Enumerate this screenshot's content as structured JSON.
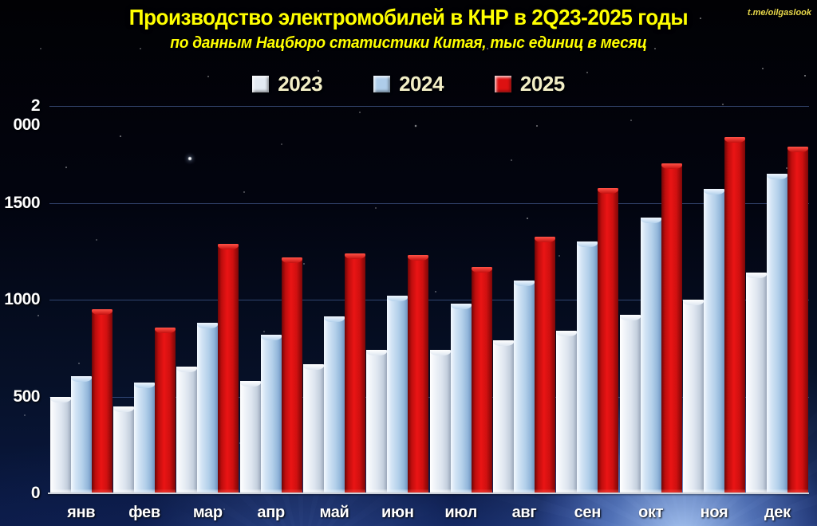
{
  "watermark": "t.me/oilgaslook",
  "chart_data": {
    "type": "bar",
    "title": "Производство электромобилей в КНР в 2Q23-2025 годы",
    "subtitle": "по данным Нацбюро статистики Китая, тыс единиц в месяц",
    "xlabel": "",
    "ylabel": "",
    "categories": [
      "янв",
      "фев",
      "мар",
      "апр",
      "май",
      "июн",
      "июл",
      "авг",
      "сен",
      "окт",
      "ноя",
      "дек"
    ],
    "series": [
      {
        "name": "2023",
        "color": "#e3eaf2",
        "values": [
          500,
          450,
          655,
          580,
          665,
          740,
          740,
          790,
          840,
          920,
          1000,
          1140
        ]
      },
      {
        "name": "2024",
        "color": "#aecdea",
        "values": [
          605,
          570,
          880,
          820,
          915,
          1020,
          980,
          1100,
          1300,
          1425,
          1570,
          1650
        ]
      },
      {
        "name": "2025",
        "color": "#dd1111",
        "values": [
          950,
          855,
          1290,
          1220,
          1240,
          1230,
          1170,
          1325,
          1575,
          1705,
          1840,
          1790
        ]
      }
    ],
    "ylim": [
      0,
      2000
    ],
    "yticks": [
      {
        "label": "2 000",
        "value": 2000
      },
      {
        "label": "1500",
        "value": 1500
      },
      {
        "label": "1000",
        "value": 1000
      },
      {
        "label": "500",
        "value": 500
      },
      {
        "label": "0",
        "value": 0
      }
    ],
    "grid": true,
    "legend_position": "top",
    "background": "dark starfield with blue glow"
  }
}
